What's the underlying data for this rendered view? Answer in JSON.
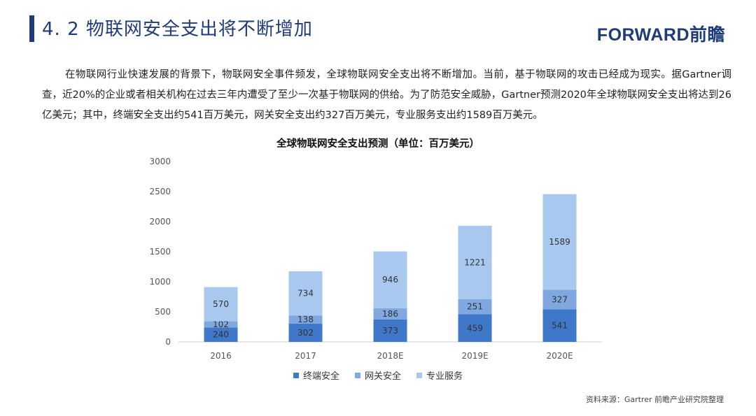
{
  "header": {
    "title": "4. 2  物联网安全支出将不断增加",
    "logo": "FORWARD前瞻"
  },
  "paragraph": "在物联网行业快速发展的背景下，物联网安全事件频发，全球物联网安全支出将不断增加。当前，基于物联网的攻击已经成为现实。据Gartner调查，近20%的企业或者相关机构在过去三年内遭受了至少一次基于物联网的供给。为了防范安全威胁，Gartner预测2020年全球物联网安全支出将达到26亿美元；其中，终端安全支出约541百万美元，网关安全支出约327百万美元，专业服务支出约1589百万美元。",
  "source": "资料来源：Gartrer  前瞻产业研究院整理",
  "chart_data": {
    "type": "bar",
    "stacked": true,
    "title": "全球物联网安全支出预测（单位：百万美元）",
    "categories": [
      "2016",
      "2017",
      "2018E",
      "2019E",
      "2020E"
    ],
    "series": [
      {
        "name": "终端安全",
        "color": "#3f77c9",
        "values": [
          240,
          302,
          373,
          459,
          541
        ]
      },
      {
        "name": "网关安全",
        "color": "#7ea8df",
        "values": [
          102,
          138,
          186,
          251,
          327
        ]
      },
      {
        "name": "专业服务",
        "color": "#a9c8ef",
        "values": [
          570,
          734,
          946,
          1221,
          1589
        ]
      }
    ],
    "ylim": [
      0,
      3000
    ],
    "yticks": [
      0,
      500,
      1000,
      1500,
      2000,
      2500,
      3000
    ],
    "grid": false,
    "legend_position": "bottom"
  }
}
